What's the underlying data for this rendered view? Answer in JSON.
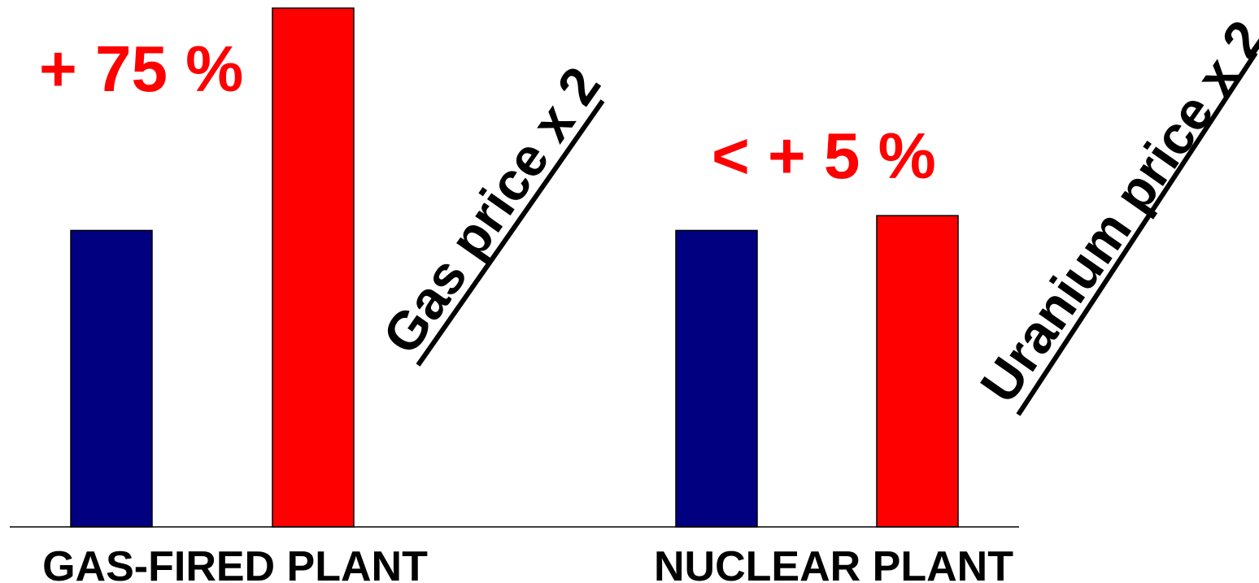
{
  "chart_data": {
    "type": "bar",
    "title": "",
    "xlabel": "",
    "ylabel": "",
    "categories": [
      "GAS-FIRED PLANT",
      "NUCLEAR PLANT"
    ],
    "series": [
      {
        "color": "#000080",
        "values": [
          100,
          100
        ]
      },
      {
        "color": "#ff0000",
        "values": [
          175,
          105
        ]
      }
    ],
    "ylim": [
      0,
      180
    ],
    "grid": false,
    "annotations": [
      {
        "text": "+ 75 %",
        "color": "#ff0000"
      },
      {
        "text": "< + 5 %",
        "color": "#ff0000"
      }
    ],
    "notes": [
      {
        "text": "Gas price x 2",
        "color": "#000000"
      },
      {
        "text": "Uranium price x 2",
        "color": "#000000"
      }
    ]
  }
}
